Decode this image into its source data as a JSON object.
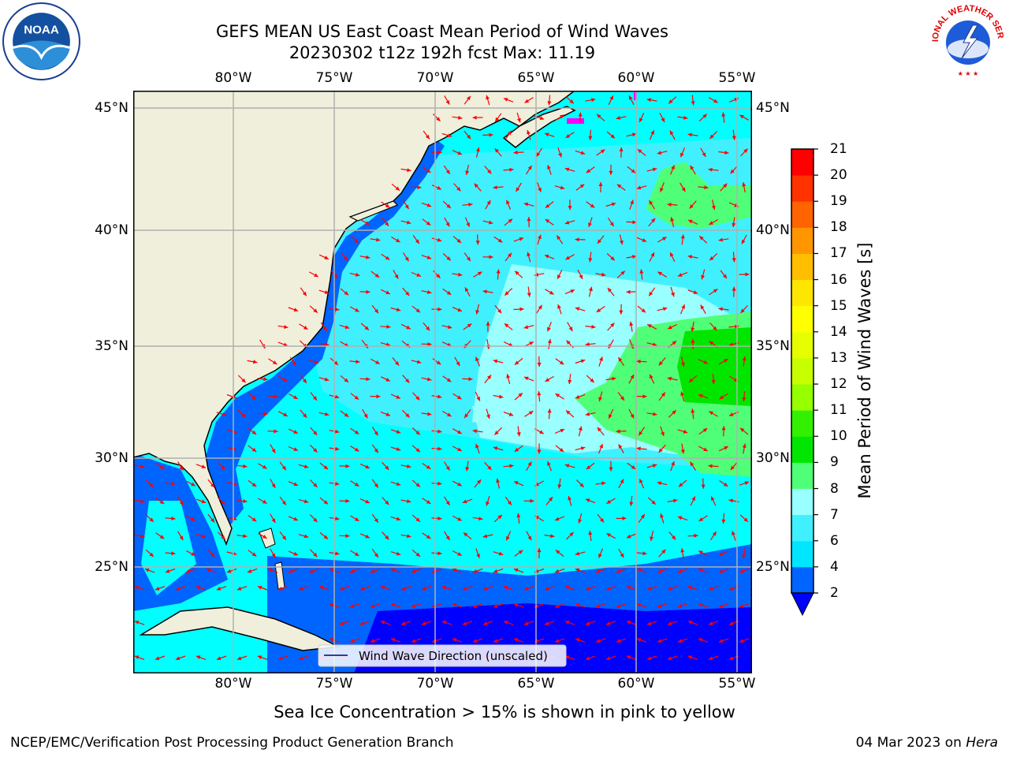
{
  "title": {
    "line1": "GEFS MEAN US East Coast Mean Period of Wind Waves",
    "line2": "20230302 t12z 192h fcst   Max: 11.19"
  },
  "map": {
    "lon_ticks_top": [
      "80°W",
      "75°W",
      "70°W",
      "65°W",
      "60°W",
      "55°W"
    ],
    "lon_ticks_bottom": [
      "80°W",
      "75°W",
      "70°W",
      "65°W",
      "60°W",
      "55°W"
    ],
    "lat_ticks_left": [
      "45°N",
      "40°N",
      "35°N",
      "30°N",
      "25°N"
    ],
    "lat_ticks_right": [
      "45°N",
      "40°N",
      "35°N",
      "30°N",
      "25°N"
    ],
    "legend_label": "Wind Wave Direction (unscaled)",
    "land_color": "#efefdc",
    "arrow_color": "#ff0000",
    "grid_color": "#b0b0b0"
  },
  "colorbar": {
    "label": "Mean Period of Wind Waves [s]",
    "ticks": [
      "2",
      "4",
      "6",
      "7",
      "8",
      "9",
      "10",
      "11",
      "12",
      "13",
      "14",
      "15",
      "16",
      "17",
      "18",
      "19",
      "20",
      "21"
    ],
    "colors": [
      "#0064ff",
      "#00e6ff",
      "#40f0ff",
      "#99ffff",
      "#50ff78",
      "#00e600",
      "#32f000",
      "#96ff00",
      "#c8ff00",
      "#e6ff00",
      "#ffff00",
      "#ffe600",
      "#ffbe00",
      "#ff9600",
      "#ff6400",
      "#ff3200",
      "#ff0000"
    ],
    "extend_color": "#0000ff"
  },
  "footer": {
    "ice_note": "Sea Ice Concentration > 15% is shown in pink to yellow",
    "credit": "NCEP/EMC/Verification Post Processing Product Generation Branch",
    "date": "04 Mar 2023 on ",
    "host": "Hera"
  },
  "logos": {
    "left": "NOAA",
    "right_arc": "NATIONAL WEATHER SERVICE"
  }
}
